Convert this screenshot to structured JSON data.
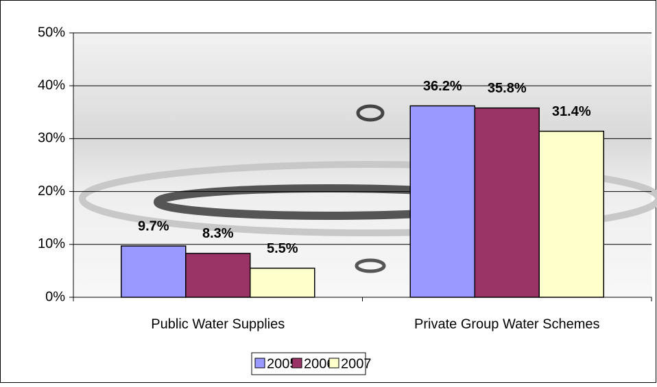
{
  "chart_data": {
    "type": "bar",
    "categories": [
      "Public Water Supplies",
      "Private Group Water Schemes"
    ],
    "series": [
      {
        "name": "2005",
        "color": "#9999ff",
        "values": [
          9.7,
          36.2
        ],
        "value_labels": [
          "9.7%",
          "36.2%"
        ]
      },
      {
        "name": "2006",
        "color": "#993366",
        "values": [
          8.3,
          35.8
        ],
        "value_labels": [
          "8.3%",
          "35.8%"
        ]
      },
      {
        "name": "2007",
        "color": "#ffffcc",
        "values": [
          5.5,
          31.4
        ],
        "value_labels": [
          "5.5%",
          "31.4%"
        ]
      }
    ],
    "ylim": [
      0,
      50
    ],
    "yticks": [
      {
        "value": 0,
        "label": "0%"
      },
      {
        "value": 10,
        "label": "10%"
      },
      {
        "value": 20,
        "label": "20%"
      },
      {
        "value": 30,
        "label": "30%"
      },
      {
        "value": 40,
        "label": "40%"
      },
      {
        "value": 50,
        "label": "50%"
      }
    ],
    "grid": true,
    "legend": "bottom"
  }
}
